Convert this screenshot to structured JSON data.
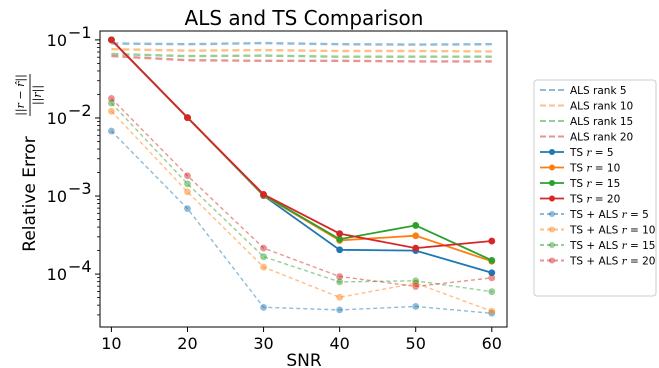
{
  "chart_data": {
    "type": "line",
    "title": "ALS and TS Comparison",
    "xlabel": "SNR",
    "ylabel": "Relative Error",
    "ylabel_fraction_num": "||r − r̂||",
    "ylabel_fraction_den": "||r||",
    "yscale": "log",
    "xlim": [
      8.5,
      62
    ],
    "ylim": [
      2.1e-05,
      0.13
    ],
    "x": [
      10,
      20,
      30,
      40,
      50,
      60
    ],
    "x_ticks": [
      10,
      20,
      30,
      40,
      50,
      60
    ],
    "x_tick_labels": [
      "10",
      "20",
      "30",
      "40",
      "50",
      "60"
    ],
    "y_ticks": [
      0.1,
      0.01,
      0.001,
      0.0001
    ],
    "y_tick_labels": [
      "10",
      "10",
      "10",
      "10"
    ],
    "y_tick_exponents": [
      "−1",
      "−2",
      "−3",
      "−4"
    ],
    "grid": false,
    "legend_position": "outside-right",
    "series": [
      {
        "name": "ALS rank 5",
        "color": "#1f77b4",
        "style": "dashed",
        "markers": false,
        "alpha": 0.5,
        "values": [
          0.09,
          0.088,
          0.091,
          0.088,
          0.087,
          0.088
        ]
      },
      {
        "name": "ALS rank 10",
        "color": "#ff7f0e",
        "style": "dashed",
        "markers": false,
        "alpha": 0.5,
        "values": [
          0.076,
          0.073,
          0.074,
          0.072,
          0.072,
          0.071
        ]
      },
      {
        "name": "ALS rank 15",
        "color": "#2ca02c",
        "style": "dashed",
        "markers": false,
        "alpha": 0.5,
        "values": [
          0.066,
          0.062,
          0.063,
          0.061,
          0.061,
          0.061
        ]
      },
      {
        "name": "ALS rank 20",
        "color": "#d62728",
        "style": "dashed",
        "markers": false,
        "alpha": 0.5,
        "values": [
          0.062,
          0.055,
          0.054,
          0.054,
          0.053,
          0.053
        ]
      },
      {
        "name": "TS r = 5",
        "prefix": "TS ",
        "r": "5",
        "color": "#1f77b4",
        "style": "solid",
        "markers": true,
        "alpha": 1,
        "values": [
          0.1,
          0.0101,
          0.00101,
          0.000205,
          0.0002,
          0.000104
        ]
      },
      {
        "name": "TS r = 10",
        "prefix": "TS ",
        "r": "10",
        "color": "#ff7f0e",
        "style": "solid",
        "markers": true,
        "alpha": 1,
        "values": [
          0.1,
          0.0101,
          0.00102,
          0.00027,
          0.00031,
          0.000146
        ]
      },
      {
        "name": "TS r = 15",
        "prefix": "TS ",
        "r": "15",
        "color": "#2ca02c",
        "style": "solid",
        "markers": true,
        "alpha": 1,
        "values": [
          0.1,
          0.0101,
          0.00103,
          0.00028,
          0.00042,
          0.00015
        ]
      },
      {
        "name": "TS r = 20",
        "prefix": "TS ",
        "r": "20",
        "color": "#d62728",
        "style": "solid",
        "markers": true,
        "alpha": 1,
        "values": [
          0.1,
          0.0101,
          0.00105,
          0.00033,
          0.000215,
          0.000265
        ]
      },
      {
        "name": "TS + ALS r = 5",
        "prefix": "TS + ALS ",
        "r": "5",
        "color": "#1f77b4",
        "style": "dashed",
        "markers": true,
        "alpha": 0.5,
        "values": [
          0.0068,
          0.00069,
          3.75e-05,
          3.48e-05,
          3.85e-05,
          3.15e-05
        ]
      },
      {
        "name": "TS + ALS r = 10",
        "prefix": "TS + ALS ",
        "r": "10",
        "color": "#ff7f0e",
        "style": "dashed",
        "markers": true,
        "alpha": 0.5,
        "values": [
          0.0122,
          0.00113,
          0.000123,
          5.05e-05,
          7.65e-05,
          3.35e-05
        ]
      },
      {
        "name": "TS + ALS r = 15",
        "prefix": "TS + ALS ",
        "r": "15",
        "color": "#2ca02c",
        "style": "dashed",
        "markers": true,
        "alpha": 0.5,
        "values": [
          0.0155,
          0.00143,
          0.000167,
          7.95e-05,
          8.2e-05,
          5.95e-05
        ]
      },
      {
        "name": "TS + ALS r = 20",
        "prefix": "TS + ALS ",
        "r": "20",
        "color": "#d62728",
        "style": "dashed",
        "markers": true,
        "alpha": 0.5,
        "values": [
          0.0178,
          0.00182,
          0.000215,
          9.3e-05,
          6.95e-05,
          8.95e-05
        ]
      }
    ]
  }
}
